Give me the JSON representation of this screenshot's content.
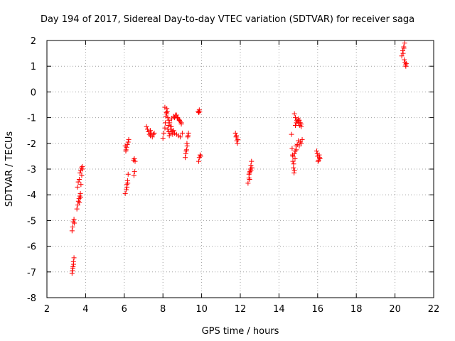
{
  "chart_data": {
    "type": "scatter",
    "title": "Day 194 of 2017, Sidereal Day-to-day VTEC variation (SDTVAR) for receiver saga",
    "xlabel": "GPS time / hours",
    "ylabel": "SDTVAR / TECUs",
    "xlim": [
      2,
      22
    ],
    "ylim": [
      -8,
      2
    ],
    "xticks": [
      2,
      4,
      6,
      8,
      10,
      12,
      14,
      16,
      18,
      20,
      22
    ],
    "yticks": [
      -8,
      -7,
      -6,
      -5,
      -4,
      -3,
      -2,
      -1,
      0,
      1,
      2
    ],
    "grid": true,
    "marker": "+",
    "color": "#ff0000",
    "series": [
      {
        "name": "SDTVAR",
        "x": [
          3.3,
          3.33,
          3.36,
          3.4,
          3.32,
          3.35,
          3.38,
          3.3,
          3.34,
          3.37,
          3.4,
          3.42,
          3.55,
          3.6,
          3.63,
          3.66,
          3.7,
          3.73,
          3.76,
          3.8,
          3.84,
          3.58,
          3.62,
          3.67,
          3.71,
          3.75,
          3.79,
          3.83,
          3.68,
          3.74,
          6.05,
          6.1,
          6.13,
          6.17,
          6.2,
          6.08,
          6.12,
          6.16,
          6.2,
          6.23,
          6.05,
          6.09,
          6.14,
          6.18,
          6.5,
          6.53,
          6.56,
          6.48,
          6.52,
          7.15,
          7.2,
          7.25,
          7.3,
          7.35,
          7.4,
          7.45,
          7.5,
          7.55,
          7.35,
          8.0,
          8.05,
          8.1,
          8.12,
          8.15,
          8.18,
          8.2,
          8.22,
          8.25,
          8.28,
          8.3,
          8.33,
          8.36,
          8.4,
          8.43,
          8.46,
          8.5,
          8.55,
          8.1,
          8.2,
          8.3,
          8.4,
          8.5,
          8.6,
          8.7,
          8.8,
          8.9,
          9.0,
          8.25,
          8.35,
          8.45,
          8.55,
          8.65,
          8.75,
          8.85,
          8.95,
          8.6,
          8.65,
          8.7,
          8.75,
          8.8,
          8.85,
          8.9,
          8.95,
          9.15,
          9.18,
          9.22,
          9.25,
          9.28,
          9.32,
          9.2,
          9.24,
          9.3,
          9.82,
          9.85,
          9.88,
          9.9,
          9.85,
          9.88,
          9.92,
          9.95,
          11.75,
          11.78,
          11.82,
          11.85,
          11.88,
          11.8,
          12.4,
          12.45,
          12.48,
          12.52,
          12.55,
          12.58,
          12.45,
          12.5,
          12.55,
          12.6,
          12.48,
          14.65,
          14.7,
          14.72,
          14.75,
          14.78,
          14.8,
          14.83,
          14.68,
          14.72,
          14.76,
          14.8,
          14.84,
          14.88,
          14.8,
          14.85,
          14.9,
          14.95,
          15.0,
          15.05,
          15.1,
          15.15,
          14.85,
          14.92,
          15.0,
          15.08,
          15.15,
          14.9,
          14.95,
          15.0,
          15.05,
          15.1,
          15.15,
          15.2,
          15.95,
          16.0,
          16.05,
          16.1,
          16.02,
          16.08,
          16.12,
          15.98,
          20.35,
          20.4,
          20.45,
          20.5,
          20.55,
          20.42,
          20.48,
          20.52,
          20.58,
          20.46,
          20.56
        ],
        "y": [
          -5.4,
          -5.25,
          -5.05,
          -4.95,
          -6.95,
          -6.8,
          -6.7,
          -7.05,
          -6.85,
          -6.6,
          -6.45,
          -5.1,
          -4.55,
          -4.4,
          -4.25,
          -4.15,
          -4.05,
          -3.95,
          -3.6,
          -3.25,
          -3.0,
          -3.7,
          -3.5,
          -3.4,
          -3.15,
          -3.05,
          -2.95,
          -2.9,
          -4.3,
          -4.1,
          -3.95,
          -3.8,
          -3.6,
          -3.45,
          -3.2,
          -2.3,
          -2.15,
          -2.05,
          -1.95,
          -1.85,
          -2.1,
          -2.25,
          -3.7,
          -3.55,
          -3.25,
          -3.1,
          -2.7,
          -2.65,
          -2.6,
          -1.35,
          -1.45,
          -1.55,
          -1.65,
          -1.7,
          -1.6,
          -1.75,
          -1.65,
          -1.6,
          -1.5,
          -1.8,
          -1.6,
          -1.4,
          -1.2,
          -0.95,
          -0.8,
          -0.65,
          -0.75,
          -1.0,
          -1.3,
          -1.55,
          -1.7,
          -1.6,
          -1.45,
          -1.35,
          -1.55,
          -1.65,
          -1.5,
          -0.6,
          -0.85,
          -1.1,
          -1.35,
          -1.55,
          -1.6,
          -1.65,
          -1.7,
          -1.75,
          -1.6,
          -1.45,
          -1.2,
          -1.05,
          -0.95,
          -0.9,
          -1.0,
          -1.1,
          -1.2,
          -1.0,
          -0.95,
          -0.9,
          -1.0,
          -1.05,
          -1.1,
          -1.15,
          -1.25,
          -2.55,
          -2.4,
          -2.25,
          -2.1,
          -1.75,
          -1.6,
          -2.3,
          -2.0,
          -1.7,
          -0.75,
          -0.8,
          -0.7,
          -0.78,
          -2.7,
          -2.55,
          -2.45,
          -2.5,
          -1.6,
          -1.75,
          -1.9,
          -2.0,
          -1.85,
          -1.7,
          -3.55,
          -3.35,
          -3.15,
          -3.0,
          -2.85,
          -2.7,
          -3.2,
          -3.1,
          -3.05,
          -2.95,
          -3.4,
          -1.65,
          -2.45,
          -2.7,
          -2.95,
          -3.15,
          -3.05,
          -2.6,
          -2.2,
          -2.5,
          -2.8,
          -2.4,
          -2.3,
          -2.1,
          -0.85,
          -1.0,
          -1.2,
          -1.15,
          -1.05,
          -1.1,
          -1.2,
          -1.25,
          -1.3,
          -1.1,
          -1.2,
          -1.3,
          -1.35,
          -2.25,
          -2.05,
          -1.9,
          -2.1,
          -1.95,
          -2.0,
          -1.85,
          -2.3,
          -2.5,
          -2.65,
          -2.55,
          -2.7,
          -2.45,
          -2.6,
          -2.4,
          1.4,
          1.6,
          1.75,
          1.9,
          1.05,
          1.5,
          1.25,
          1.15,
          1.1,
          1.7,
          1.0
        ]
      }
    ]
  }
}
